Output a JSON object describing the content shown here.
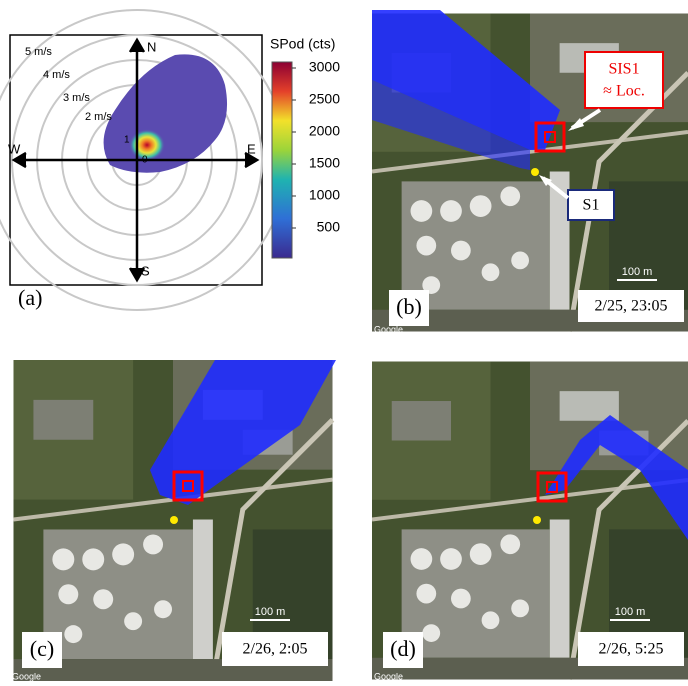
{
  "panel_a": {
    "label": "(a)",
    "colorbar": {
      "title": "SPod (cts)",
      "ticks": [
        500,
        1000,
        1500,
        2000,
        2500,
        3000
      ]
    },
    "speed_labels": [
      "5 m/s",
      "4 m/s",
      "3 m/s",
      "2 m/s"
    ],
    "directions": {
      "north": "N",
      "east": "E",
      "south": "S",
      "west": "W"
    },
    "markers": [
      "1",
      "0"
    ]
  },
  "panel_b": {
    "label": "(b)",
    "timestamp": "2/25, 23:05",
    "source_callout": [
      "SIS1",
      "≈ Loc."
    ],
    "sensor_callout": "S1",
    "scale": "100 m",
    "watermark": "Google"
  },
  "panel_c": {
    "label": "(c)",
    "timestamp": "2/26, 2:05",
    "scale": "100 m",
    "watermark": "Google"
  },
  "panel_d": {
    "label": "(d)",
    "timestamp": "2/26, 5:25",
    "scale": "100 m",
    "watermark": "Google"
  }
}
